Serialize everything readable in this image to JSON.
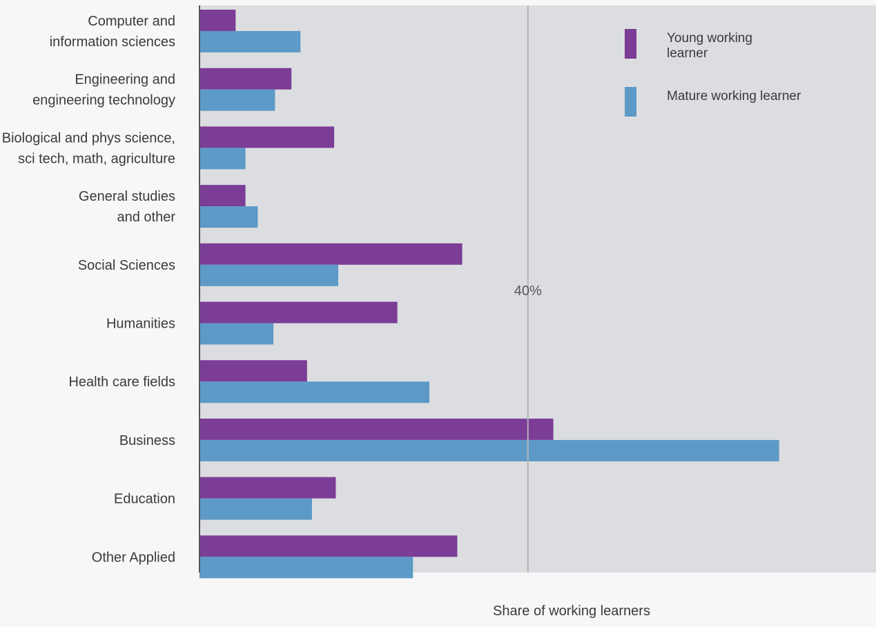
{
  "chart_data": {
    "type": "bar",
    "orientation": "horizontal",
    "categories": [
      "Computer and\ninformation sciences",
      "Engineering and\nengineering technology",
      "Biological and phys science,\nsci tech, math, agriculture",
      "General studies\nand other",
      "Social Sciences",
      "Humanities",
      "Health care fields",
      "Business",
      "Education",
      "Other Applied"
    ],
    "series": [
      {
        "name": "Young working\nlearner",
        "color": "#7b3d96",
        "values": [
          4.4,
          11.2,
          16.4,
          5.6,
          32.0,
          24.1,
          13.1,
          43.1,
          16.6,
          31.4
        ]
      },
      {
        "name": "Mature working learner",
        "color": "#5d9ac7",
        "values": [
          12.3,
          9.2,
          5.6,
          7.1,
          16.9,
          9.0,
          28.0,
          70.6,
          13.7,
          26.0
        ]
      }
    ],
    "xlim": [
      0,
      82.4
    ],
    "reference_line": {
      "value": 40,
      "label": "40%"
    },
    "xlabel": "Share of working learners",
    "ylabel": "",
    "legend_position": "top-right",
    "plot_background": "#dcdde0",
    "page_background": "#f7f7f7"
  }
}
